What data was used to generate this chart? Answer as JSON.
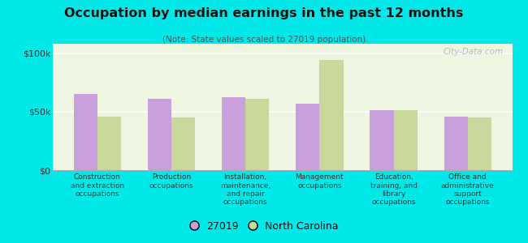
{
  "title": "Occupation by median earnings in the past 12 months",
  "subtitle": "(Note: State values scaled to 27019 population)",
  "categories": [
    "Construction\nand extraction\noccupations",
    "Production\noccupations",
    "Installation,\nmaintenance,\nand repair\noccupations",
    "Management\noccupations",
    "Education,\ntraining, and\nlibrary\noccupations",
    "Office and\nadministrative\nsupport\noccupations"
  ],
  "values_27019": [
    65000,
    61000,
    62000,
    57000,
    51000,
    46000
  ],
  "values_nc": [
    46000,
    45000,
    61000,
    94000,
    51000,
    45000
  ],
  "color_27019": "#c9a0dc",
  "color_nc": "#c8d89a",
  "ylabel_ticks": [
    0,
    50000,
    100000
  ],
  "ylabel_labels": [
    "$0",
    "$50k",
    "$100k"
  ],
  "ylim": [
    0,
    108000
  ],
  "background_color": "#00e8e8",
  "plot_bg_color": "#eef5e0",
  "legend_27019": "27019",
  "legend_nc": "North Carolina",
  "watermark": "City-Data.com"
}
